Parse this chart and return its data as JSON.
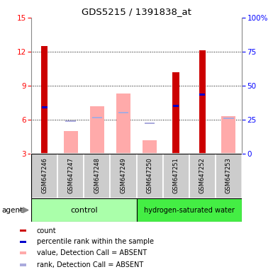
{
  "title": "GDS5215 / 1391838_at",
  "samples": [
    "GSM647246",
    "GSM647247",
    "GSM647248",
    "GSM647249",
    "GSM647250",
    "GSM647251",
    "GSM647252",
    "GSM647253"
  ],
  "ylim_left": [
    3,
    15
  ],
  "ylim_right": [
    0,
    100
  ],
  "yticks_left": [
    3,
    6,
    9,
    12,
    15
  ],
  "yticks_right": [
    0,
    25,
    50,
    75,
    100
  ],
  "yticklabels_right": [
    "0",
    "25",
    "50",
    "75",
    "100%"
  ],
  "red_bars": [
    12.5,
    0,
    0,
    0,
    0,
    10.2,
    12.1,
    0
  ],
  "blue_bars": [
    7.1,
    0,
    0,
    0,
    0,
    7.2,
    8.2,
    0
  ],
  "pink_bars": [
    0,
    5.0,
    7.2,
    8.3,
    4.2,
    0,
    0,
    6.3
  ],
  "lightblue_bars": [
    0,
    5.9,
    6.2,
    6.6,
    5.7,
    0,
    0,
    6.1
  ],
  "colors": {
    "red": "#cc0000",
    "blue": "#0000cc",
    "pink": "#ffaaaa",
    "lightblue": "#aaaadd"
  },
  "legend_items": [
    {
      "color": "#cc0000",
      "label": "count"
    },
    {
      "color": "#0000cc",
      "label": "percentile rank within the sample"
    },
    {
      "color": "#ffaaaa",
      "label": "value, Detection Call = ABSENT"
    },
    {
      "color": "#aaaadd",
      "label": "rank, Detection Call = ABSENT"
    }
  ],
  "dotted_grid_values": [
    6,
    9,
    12
  ],
  "bar_base": 3,
  "ctrl_color": "#aaffaa",
  "hyd_color": "#44ee44"
}
